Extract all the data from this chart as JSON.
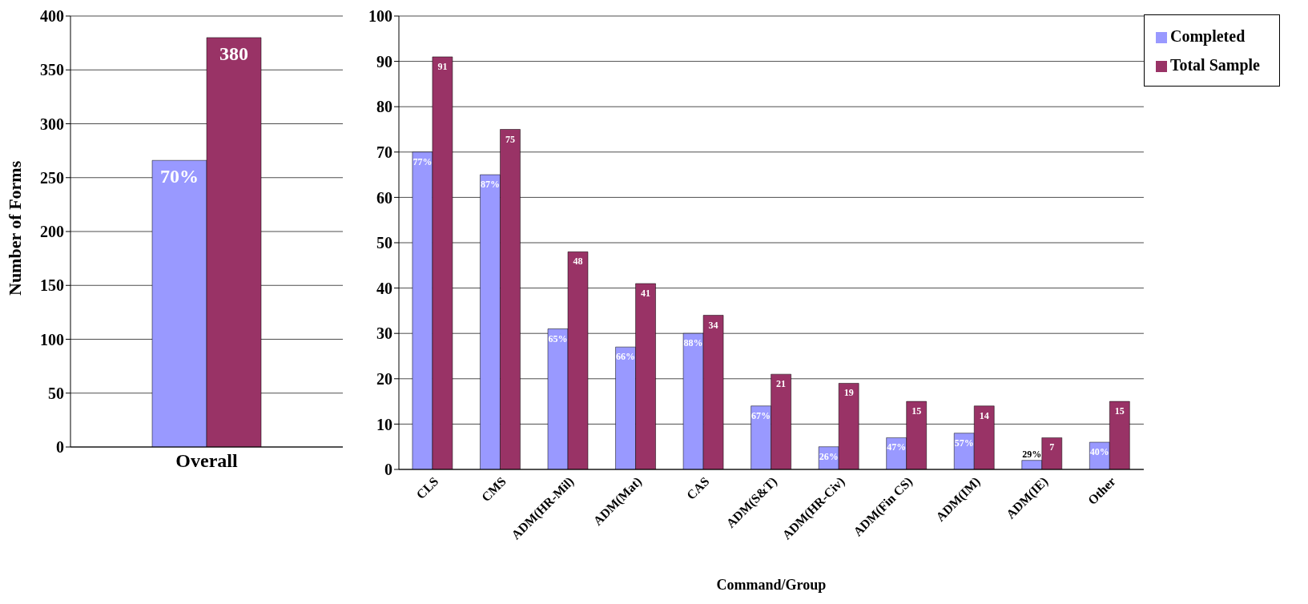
{
  "chart_data": [
    {
      "type": "bar",
      "ylabel": "Number of Forms",
      "categories": [
        "Overall"
      ],
      "series": [
        {
          "color": "#9999ff",
          "values": [
            266
          ]
        },
        {
          "color": "#993366",
          "values": [
            380
          ],
          "value_labels": [
            "380"
          ]
        }
      ],
      "annotations": [
        {
          "text": "70%",
          "x": "Overall",
          "y": 266
        }
      ],
      "ylim": [
        0,
        400
      ],
      "yticks": [
        0,
        50,
        100,
        150,
        200,
        250,
        300,
        350,
        400
      ],
      "grid": "y",
      "legend": false
    },
    {
      "type": "bar",
      "xlabel": "Command/Group",
      "categories": [
        "CLS",
        "CMS",
        "ADM(HR-Mil)",
        "ADM(Mat)",
        "CAS",
        "ADM(S&T)",
        "ADM(HR-Civ)",
        "ADM(Fin CS)",
        "ADM(IM)",
        "ADM(IE)",
        "Other"
      ],
      "series": [
        {
          "name": "Completed",
          "color": "#9999ff",
          "values": [
            70,
            65,
            31,
            27,
            30,
            14,
            5,
            7,
            8,
            2,
            6
          ]
        },
        {
          "name": "Total Sample",
          "color": "#993366",
          "values": [
            91,
            75,
            48,
            41,
            34,
            21,
            19,
            15,
            14,
            7,
            15
          ],
          "value_labels": [
            "91",
            "75",
            "48",
            "41",
            "34",
            "21",
            "19",
            "15",
            "14",
            "7",
            "15"
          ]
        }
      ],
      "annotations": [
        {
          "text": "77%",
          "x": "CLS",
          "y": 70
        },
        {
          "text": "87%",
          "x": "CMS",
          "y": 65
        },
        {
          "text": "65%",
          "x": "ADM(HR-Mil)",
          "y": 31
        },
        {
          "text": "66%",
          "x": "ADM(Mat)",
          "y": 27
        },
        {
          "text": "88%",
          "x": "CAS",
          "y": 30
        },
        {
          "text": "67%",
          "x": "ADM(S&T)",
          "y": 14
        },
        {
          "text": "26%",
          "x": "ADM(HR-Civ)",
          "y": 5
        },
        {
          "text": "47%",
          "x": "ADM(Fin CS)",
          "y": 7
        },
        {
          "text": "57%",
          "x": "ADM(IM)",
          "y": 8
        },
        {
          "text": "29%",
          "x": "ADM(IE)",
          "y": 2
        },
        {
          "text": "40%",
          "x": "Other",
          "y": 6
        }
      ],
      "ylim": [
        0,
        100
      ],
      "yticks": [
        0,
        10,
        20,
        30,
        40,
        50,
        60,
        70,
        80,
        90,
        100
      ],
      "grid": "y",
      "legend": "top right"
    }
  ]
}
